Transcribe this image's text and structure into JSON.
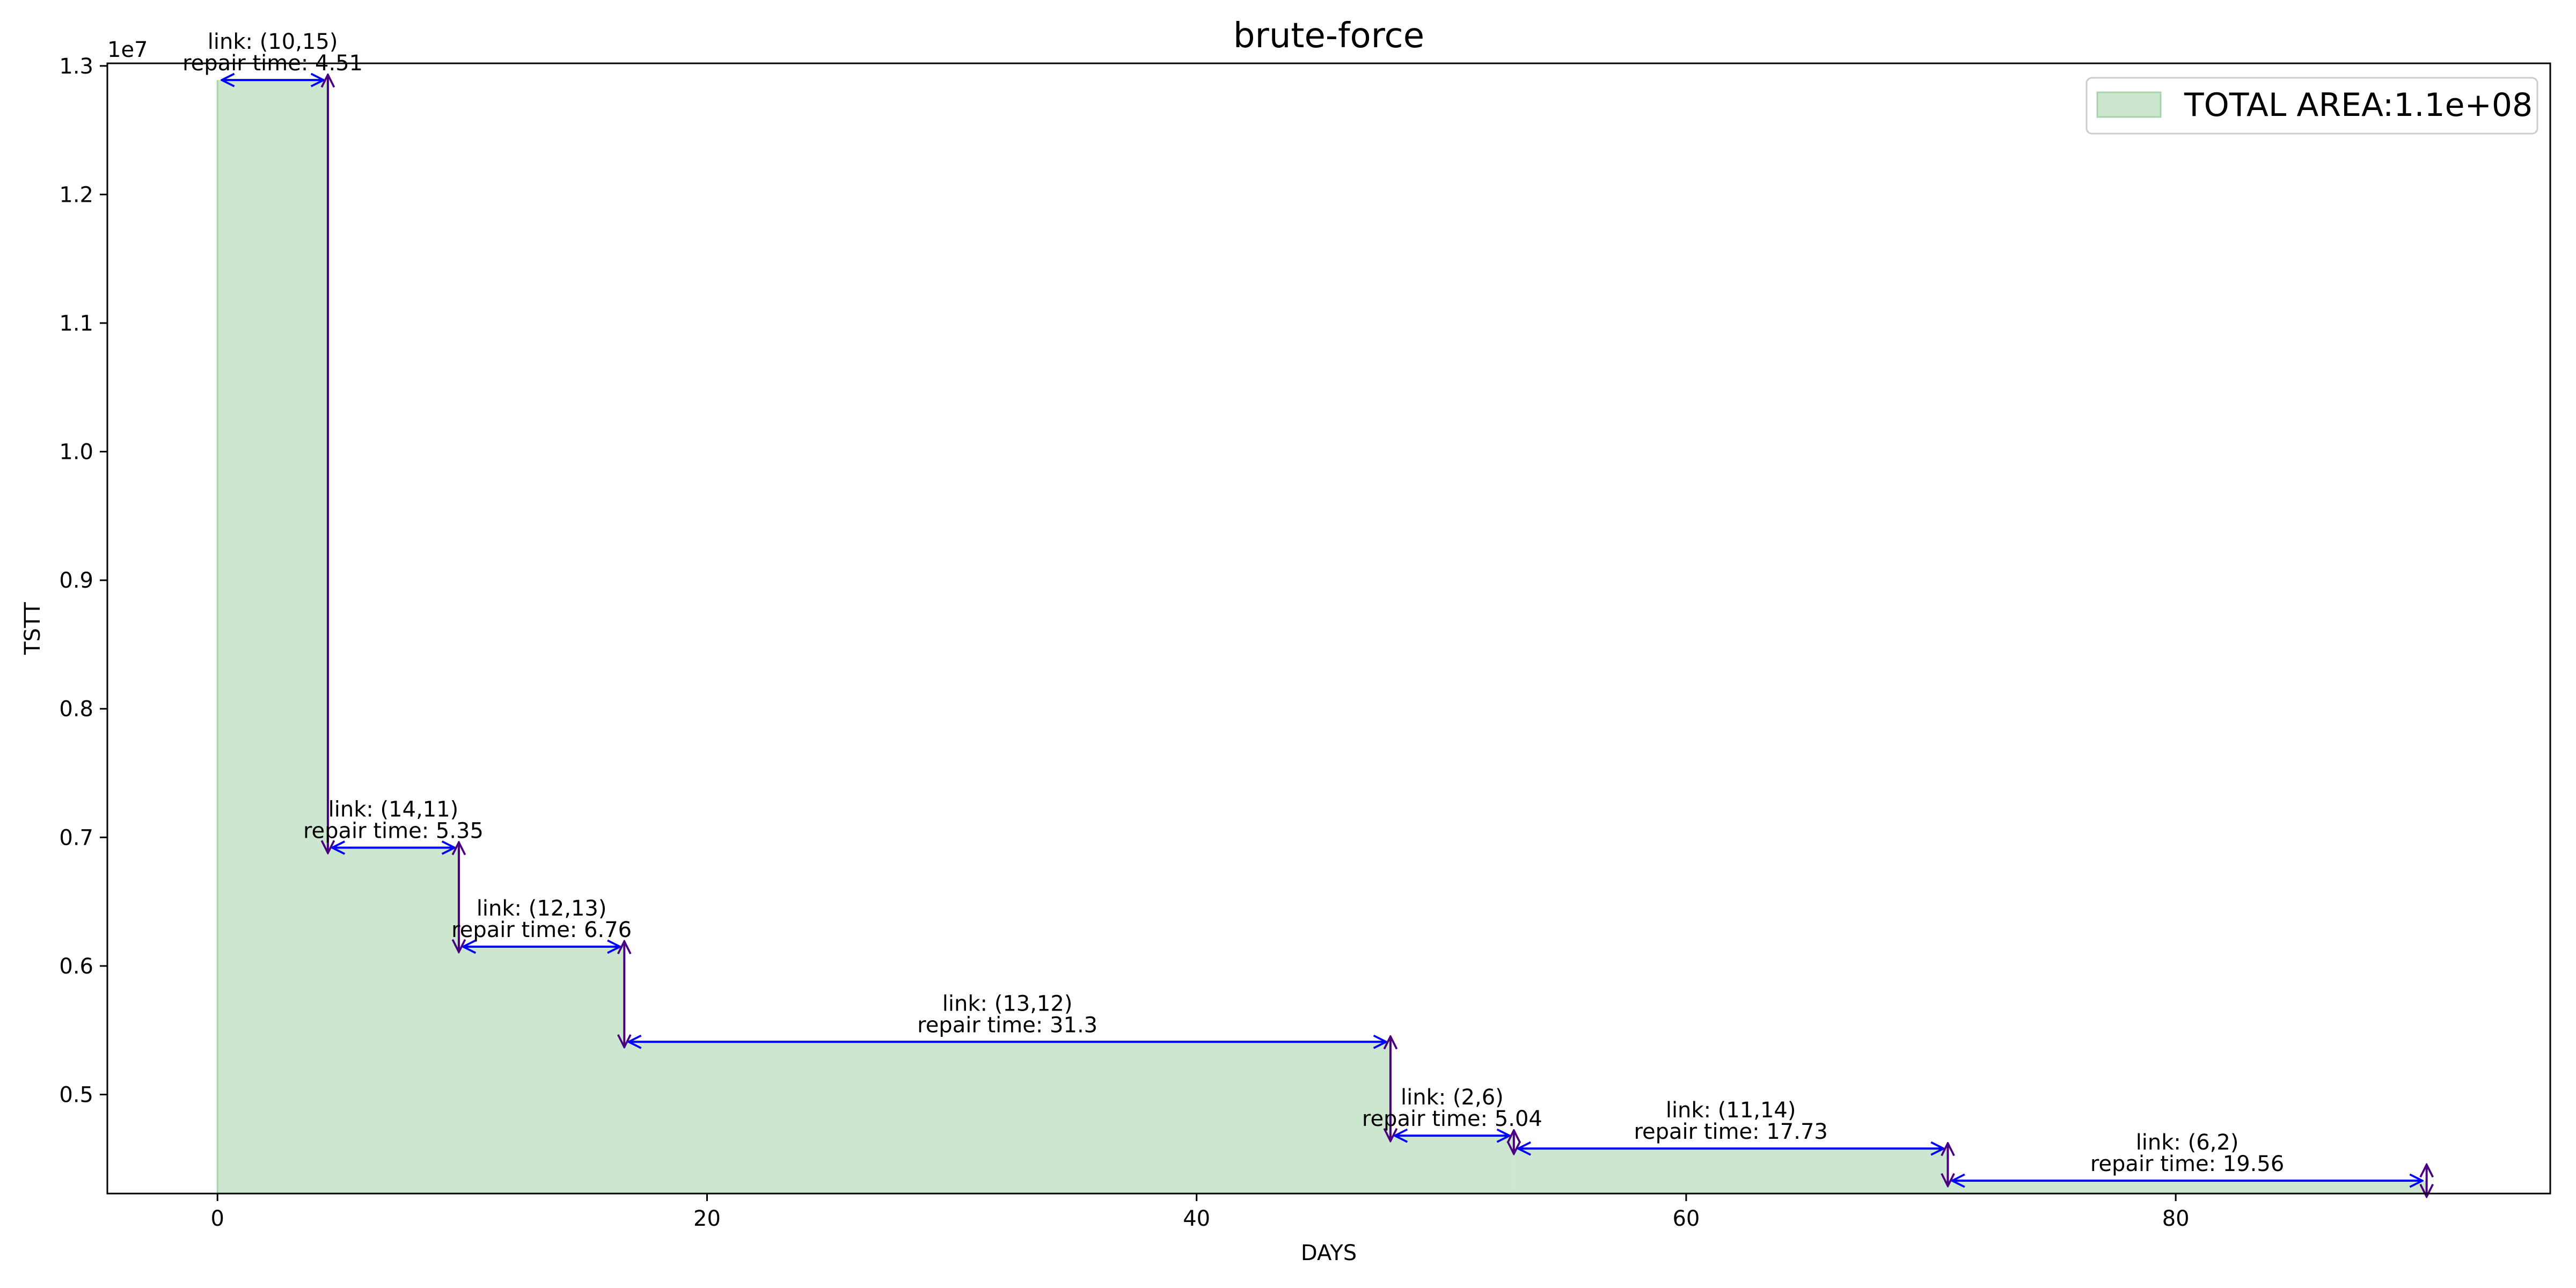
{
  "chart_data": {
    "type": "area",
    "title": "brute-force",
    "xlabel": "DAYS",
    "ylabel": "TSTT",
    "y_scale_label": "1e7",
    "xlim": [
      -4.5,
      95.3
    ],
    "ylim": [
      4230000,
      13020000
    ],
    "xticks": [
      0,
      20,
      40,
      60,
      80
    ],
    "yticks": [
      5000000,
      6000000,
      7000000,
      8000000,
      9000000,
      10000000,
      11000000,
      12000000,
      13000000
    ],
    "ytick_labels": [
      "0.5",
      "0.6",
      "0.7",
      "0.8",
      "0.9",
      "1.0",
      "1.1",
      "1.2",
      "1.3"
    ],
    "fill_color": "#cde6cf",
    "fill_edge_color": "#a8d3ad",
    "h_arrow_color": "#0000ff",
    "v_arrow_color": "#4b0082",
    "legend": {
      "label": "TOTAL AREA:1.1e+08",
      "placement": "top-right"
    },
    "steps": [
      {
        "x_start": 0,
        "x_end": 4.51,
        "tstt": 12890000,
        "link": "link: (10,15)",
        "repair": "repair time: 4.51"
      },
      {
        "x_start": 4.51,
        "x_end": 9.86,
        "tstt": 6920000,
        "link": "link: (14,11)",
        "repair": "repair time: 5.35"
      },
      {
        "x_start": 9.86,
        "x_end": 16.62,
        "tstt": 6150000,
        "link": "link: (12,13)",
        "repair": "repair time: 6.76"
      },
      {
        "x_start": 16.62,
        "x_end": 47.92,
        "tstt": 5410000,
        "link": "link: (13,12)",
        "repair": "repair time: 31.3"
      },
      {
        "x_start": 47.92,
        "x_end": 52.96,
        "tstt": 4680000,
        "link": "link: (2,6)",
        "repair": "repair time: 5.04"
      },
      {
        "x_start": 52.96,
        "x_end": 70.69,
        "tstt": 4580000,
        "link": "link: (11,14)",
        "repair": "repair time: 17.73"
      },
      {
        "x_start": 70.69,
        "x_end": 90.25,
        "tstt": 4330000,
        "link": "link: (6,2)",
        "repair": "repair time: 19.56"
      }
    ]
  }
}
